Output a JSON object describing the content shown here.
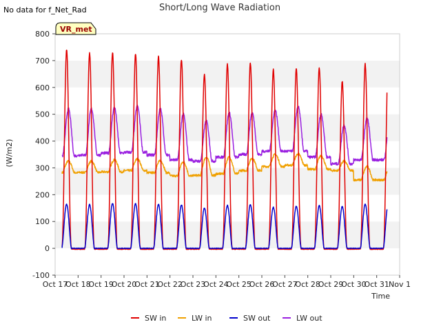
{
  "chart_data": {
    "type": "line",
    "title": "Short/Long Wave Radiation",
    "note": "No data for f_Net_Rad",
    "badge": "VR_met",
    "xlabel": "Time",
    "ylabel": "(W/m2)",
    "xlim": [
      0,
      15
    ],
    "ylim": [
      -100,
      800
    ],
    "yticks": [
      -100,
      0,
      100,
      200,
      300,
      400,
      500,
      600,
      700,
      800
    ],
    "yticklabels": [
      "-100",
      "0",
      "100",
      "200",
      "300",
      "400",
      "500",
      "600",
      "700",
      "800"
    ],
    "xticks": [
      0,
      1,
      2,
      3,
      4,
      5,
      6,
      7,
      8,
      9,
      10,
      11,
      12,
      13,
      14,
      15
    ],
    "xticklabels": [
      "Oct 17",
      "Oct 18",
      "Oct 19",
      "Oct 20",
      "Oct 21",
      "Oct 22",
      "Oct 23",
      "Oct 24",
      "Oct 25",
      "Oct 26",
      "Oct 27",
      "Oct 28",
      "Oct 29",
      "Oct 30",
      "Oct 31",
      "Nov 1"
    ],
    "data_start": 0.3,
    "data_end": 14.45,
    "series": [
      {
        "name": "SW in",
        "key": "sw_in",
        "color": "#e00000",
        "daily_peak": [
          740,
          730,
          730,
          725,
          715,
          705,
          650,
          685,
          690,
          665,
          670,
          673,
          622,
          687
        ],
        "night": -3
      },
      {
        "name": "LW in",
        "key": "lw_in",
        "color": "#f0a000",
        "daily_max": [
          325,
          325,
          330,
          333,
          327,
          322,
          340,
          340,
          335,
          350,
          352,
          345,
          325,
          305
        ],
        "daily_min": [
          282,
          283,
          285,
          290,
          282,
          270,
          272,
          278,
          290,
          305,
          310,
          295,
          290,
          255
        ]
      },
      {
        "name": "SW out",
        "key": "sw_out",
        "color": "#0000cc",
        "daily_peak": [
          165,
          163,
          167,
          166,
          164,
          162,
          150,
          160,
          163,
          153,
          158,
          159,
          155,
          165
        ],
        "night": 0
      },
      {
        "name": "LW out",
        "key": "lw_out",
        "color": "#9a20e0",
        "daily_max": [
          520,
          520,
          525,
          530,
          520,
          500,
          475,
          505,
          505,
          515,
          528,
          500,
          460,
          485
        ],
        "daily_min": [
          345,
          348,
          355,
          358,
          348,
          330,
          325,
          340,
          350,
          362,
          362,
          340,
          315,
          330
        ]
      }
    ],
    "legend": [
      {
        "label": "SW in",
        "color": "#e00000"
      },
      {
        "label": "LW in",
        "color": "#f0a000"
      },
      {
        "label": "SW out",
        "color": "#0000cc"
      },
      {
        "label": "LW out",
        "color": "#9a20e0"
      }
    ],
    "grid": "horizontal bands",
    "legend_position": "bottom-center"
  }
}
